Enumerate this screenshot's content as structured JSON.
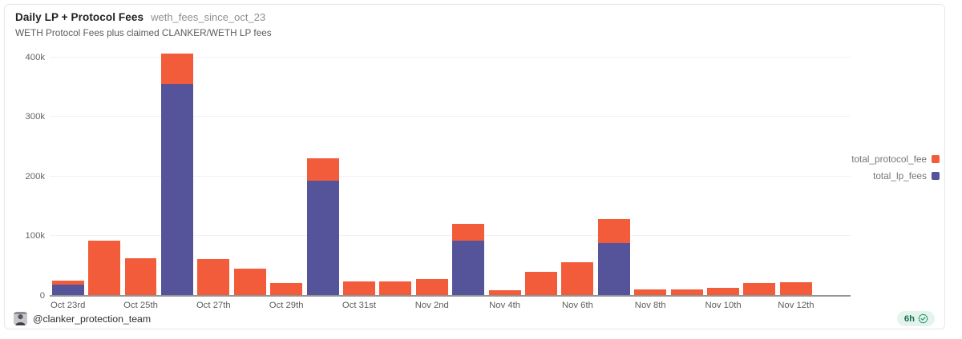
{
  "card": {
    "title": "Daily LP + Protocol Fees",
    "query_name": "weth_fees_since_oct_23",
    "subtitle": "WETH Protocol Fees plus claimed CLANKER/WETH LP fees"
  },
  "chart_data": {
    "type": "bar",
    "stacked": true,
    "title": "Daily LP + Protocol Fees",
    "categories": [
      "Oct 23",
      "Oct 24",
      "Oct 25",
      "Oct 26",
      "Oct 27",
      "Oct 28",
      "Oct 29",
      "Oct 30",
      "Oct 31",
      "Nov 1",
      "Nov 2",
      "Nov 3",
      "Nov 4",
      "Nov 5",
      "Nov 6",
      "Nov 7",
      "Nov 8",
      "Nov 9",
      "Nov 10",
      "Nov 11",
      "Nov 12",
      "Nov 13"
    ],
    "series": [
      {
        "name": "total_lp_fees",
        "color": "#55549B",
        "values": [
          19000,
          0,
          0,
          355000,
          0,
          0,
          0,
          193000,
          0,
          0,
          0,
          93000,
          0,
          0,
          0,
          88000,
          0,
          0,
          0,
          0,
          0,
          0
        ]
      },
      {
        "name": "total_protocol_fee",
        "color": "#F25C3B",
        "values": [
          7000,
          92000,
          63000,
          51000,
          62000,
          45000,
          22000,
          37000,
          24000,
          24000,
          28000,
          27000,
          9000,
          40000,
          56000,
          41000,
          11000,
          11000,
          13000,
          22000,
          23000,
          1000
        ]
      }
    ],
    "x_tick_labels": [
      "Oct 23rd",
      "Oct 25th",
      "Oct 27th",
      "Oct 29th",
      "Oct 31st",
      "Nov 2nd",
      "Nov 4th",
      "Nov 6th",
      "Nov 8th",
      "Nov 10th",
      "Nov 12th"
    ],
    "x_tick_every": 2,
    "y_ticks": [
      {
        "label": "0",
        "value": 0
      },
      {
        "label": "100k",
        "value": 100000
      },
      {
        "label": "200k",
        "value": 200000
      },
      {
        "label": "300k",
        "value": 300000
      },
      {
        "label": "400k",
        "value": 400000
      }
    ],
    "ylim": [
      0,
      400000
    ],
    "grid": "horizontal",
    "legend_position": "right"
  },
  "legend": {
    "items": [
      {
        "label": "total_protocol_fee",
        "color": "#F25C3B"
      },
      {
        "label": "total_lp_fees",
        "color": "#55549B"
      }
    ]
  },
  "footer": {
    "handle": "@clanker_protection_team",
    "age": "6h",
    "verified_icon": "badge-check-icon"
  },
  "colors": {
    "protocol_orange": "#F25C3B",
    "lp_purple": "#55549B",
    "gridline": "#f1f1f1",
    "axis_line": "#949494",
    "badge_bg": "#e4f4ec",
    "badge_green": "#1a6f52",
    "badge_icon_green": "#2b9c72"
  }
}
